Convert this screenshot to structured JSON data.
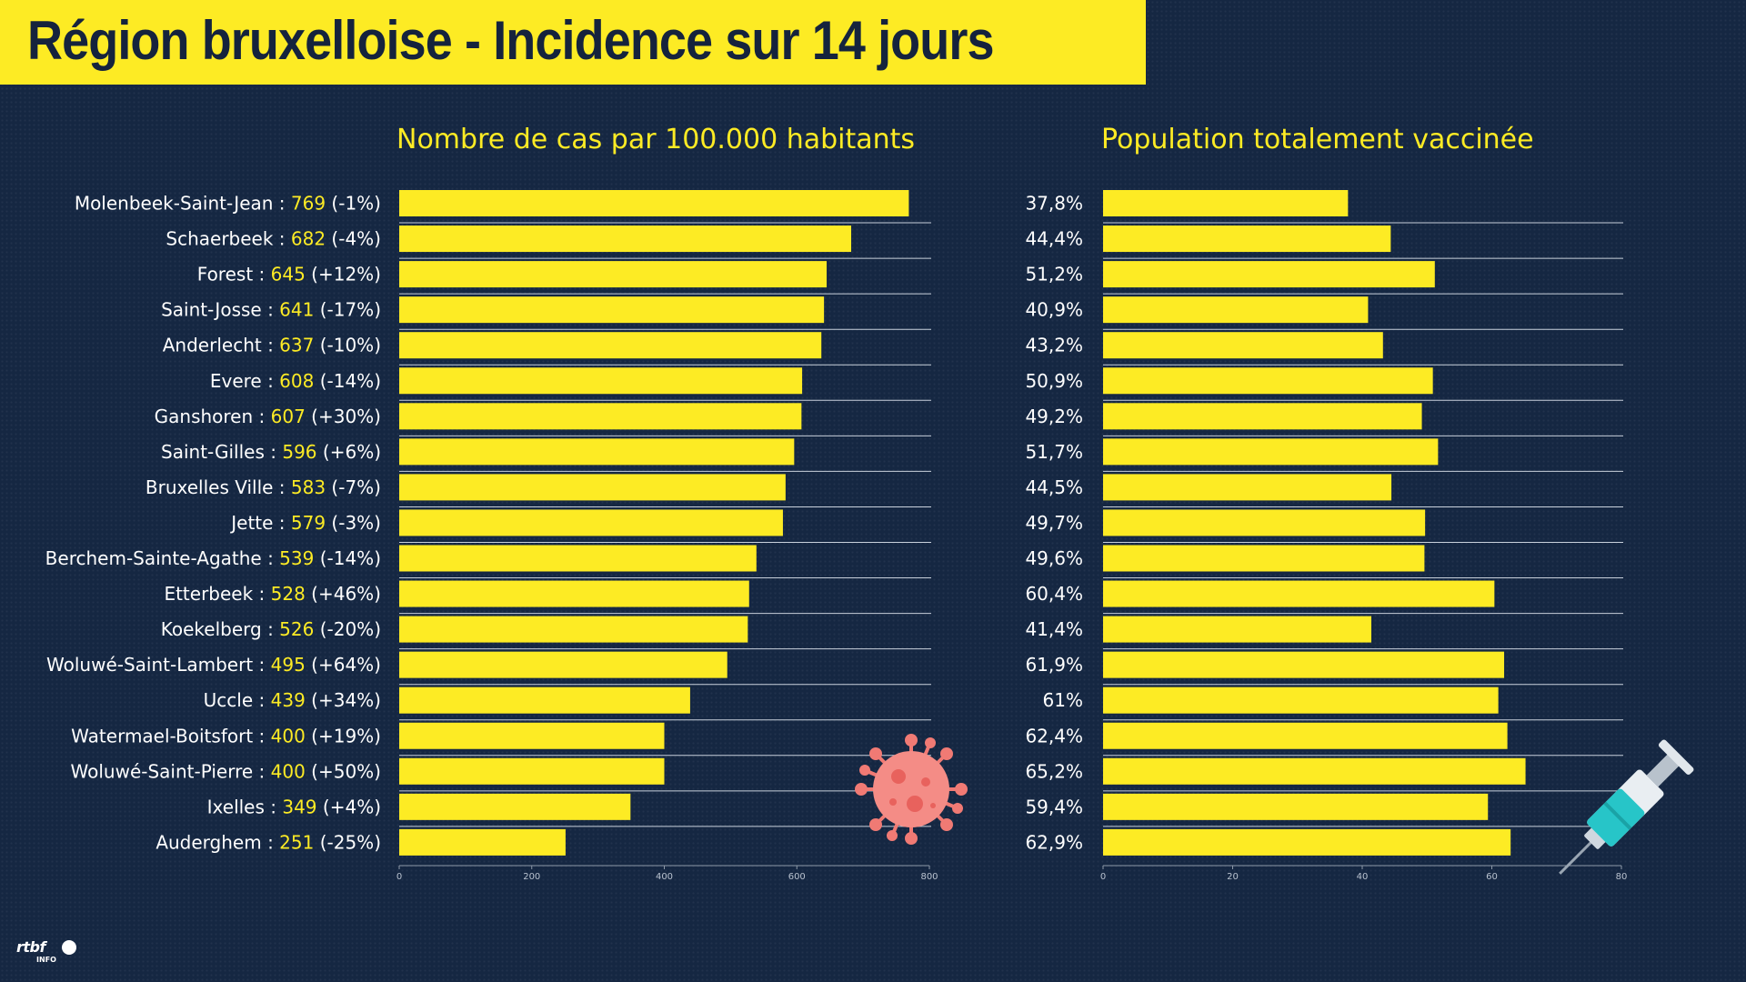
{
  "header": {
    "title": "Région bruxelloise - Incidence sur 14 jours"
  },
  "logo": {
    "brand": "rtbf",
    "sub": "INFO"
  },
  "colors": {
    "bar": "#fdeb24",
    "background": "#152742",
    "title_band": "#fdeb24"
  },
  "icons": {
    "virus": "virus-icon",
    "syringe": "syringe-icon"
  },
  "chart_data": [
    {
      "type": "bar",
      "orientation": "horizontal",
      "title": "Nombre de cas par 100.000 habitants",
      "xlim": [
        0,
        800
      ],
      "xticks": [
        0,
        200,
        400,
        600,
        800
      ],
      "categories": [
        "Molenbeek-Saint-Jean",
        "Schaerbeek",
        "Forest",
        "Saint-Josse",
        "Anderlecht",
        "Evere",
        "Ganshoren",
        "Saint-Gilles",
        "Bruxelles Ville",
        "Jette",
        "Berchem-Sainte-Agathe",
        "Etterbeek",
        "Koekelberg",
        "Woluwé-Saint-Lambert",
        "Uccle",
        "Watermael-Boitsfort",
        "Woluwé-Saint-Pierre",
        "Ixelles",
        "Auderghem"
      ],
      "values": [
        769,
        682,
        645,
        641,
        637,
        608,
        607,
        596,
        583,
        579,
        539,
        528,
        526,
        495,
        439,
        400,
        400,
        349,
        251
      ],
      "changes": [
        "(-1%)",
        "(-4%)",
        "(+12%)",
        "(-17%)",
        "(-10%)",
        "(-14%)",
        "(+30%)",
        "(+6%)",
        "(-7%)",
        "(-3%)",
        "(-14%)",
        "(+46%)",
        "(-20%)",
        "(+64%)",
        "(+34%)",
        "(+19%)",
        "(+50%)",
        "(+4%)",
        "(-25%)"
      ],
      "grid": true
    },
    {
      "type": "bar",
      "orientation": "horizontal",
      "title": "Population totalement vaccinée",
      "xlim": [
        0,
        80
      ],
      "xticks": [
        0,
        20,
        40,
        60,
        80
      ],
      "values": [
        37.8,
        44.4,
        51.2,
        40.9,
        43.2,
        50.9,
        49.2,
        51.7,
        44.5,
        49.7,
        49.6,
        60.4,
        41.4,
        61.9,
        61,
        62.4,
        65.2,
        59.4,
        62.9
      ],
      "labels": [
        "37,8%",
        "44,4%",
        "51,2%",
        "40,9%",
        "43,2%",
        "50,9%",
        "49,2%",
        "51,7%",
        "44,5%",
        "49,7%",
        "49,6%",
        "60,4%",
        "41,4%",
        "61,9%",
        "61%",
        "62,4%",
        "65,2%",
        "59,4%",
        "62,9%"
      ],
      "grid": true
    }
  ]
}
